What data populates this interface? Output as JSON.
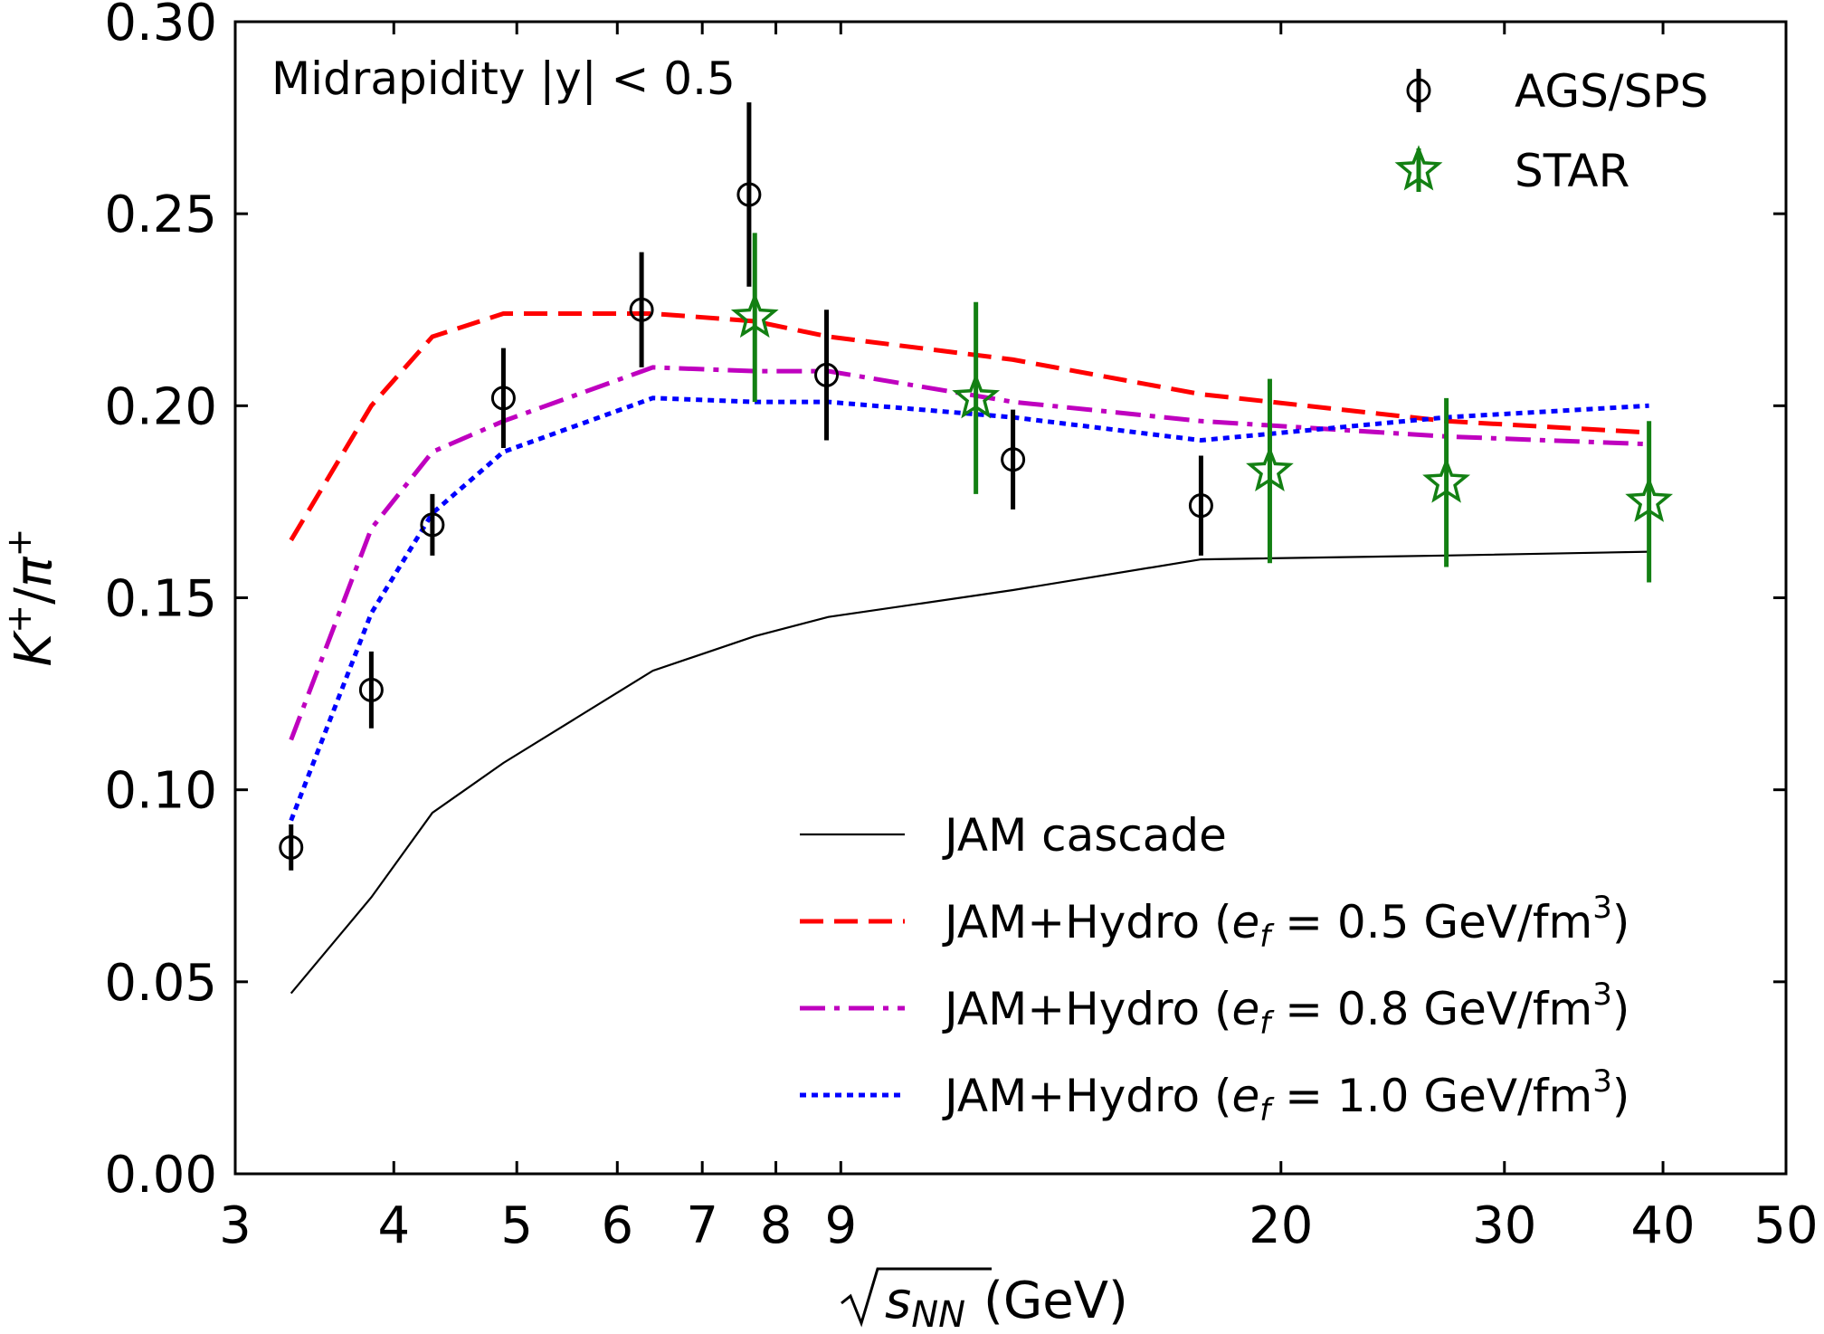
{
  "chart_data": {
    "type": "line",
    "annotation": "Midrapidity |y| < 0.5",
    "xlabel": "√sNN (GeV)",
    "ylabel": "K+/π+",
    "x_scale": "log",
    "xlim": [
      3,
      50
    ],
    "ylim": [
      0,
      0.3
    ],
    "x_ticks": [
      3,
      4,
      5,
      6,
      7,
      8,
      9,
      20,
      30,
      40,
      50
    ],
    "x_tick_labels": [
      "3",
      "4",
      "5",
      "6",
      "7",
      "8",
      "9",
      "20",
      "30",
      "40",
      "50"
    ],
    "y_ticks": [
      0,
      0.05,
      0.1,
      0.15,
      0.2,
      0.25,
      0.3
    ],
    "y_tick_labels": [
      "0.00",
      "0.05",
      "0.10",
      "0.15",
      "0.20",
      "0.25",
      "0.30"
    ],
    "grid": false,
    "legend_placement": [
      "top-right",
      "lower-right"
    ],
    "series": [
      {
        "name": "AGS/SPS",
        "kind": "errorbar",
        "marker": "circle-open",
        "color": "#000000",
        "points": [
          {
            "x": 3.32,
            "y": 0.085,
            "err": 0.006
          },
          {
            "x": 3.84,
            "y": 0.126,
            "err": 0.01
          },
          {
            "x": 4.29,
            "y": 0.169,
            "err": 0.008
          },
          {
            "x": 4.88,
            "y": 0.202,
            "err": 0.013
          },
          {
            "x": 6.27,
            "y": 0.225,
            "err": 0.015
          },
          {
            "x": 7.62,
            "y": 0.255,
            "err": 0.024
          },
          {
            "x": 8.77,
            "y": 0.208,
            "err": 0.017
          },
          {
            "x": 12.3,
            "y": 0.186,
            "err": 0.013
          },
          {
            "x": 17.3,
            "y": 0.174,
            "err": 0.013
          }
        ]
      },
      {
        "name": "STAR",
        "kind": "errorbar",
        "marker": "star-open",
        "color": "#138013",
        "points": [
          {
            "x": 7.7,
            "y": 0.223,
            "err": 0.022
          },
          {
            "x": 11.5,
            "y": 0.202,
            "err": 0.025
          },
          {
            "x": 19.6,
            "y": 0.183,
            "err": 0.024
          },
          {
            "x": 27.0,
            "y": 0.18,
            "err": 0.022
          },
          {
            "x": 39.0,
            "y": 0.175,
            "err": 0.021
          }
        ]
      },
      {
        "name": "JAM cascade",
        "kind": "line",
        "style": "solid",
        "color": "#000000",
        "points": [
          {
            "x": 3.32,
            "y": 0.047
          },
          {
            "x": 3.84,
            "y": 0.072
          },
          {
            "x": 4.29,
            "y": 0.094
          },
          {
            "x": 4.88,
            "y": 0.107
          },
          {
            "x": 6.4,
            "y": 0.131
          },
          {
            "x": 7.7,
            "y": 0.14
          },
          {
            "x": 8.8,
            "y": 0.145
          },
          {
            "x": 12.3,
            "y": 0.152
          },
          {
            "x": 17.3,
            "y": 0.16
          },
          {
            "x": 27.0,
            "y": 0.161
          },
          {
            "x": 39.0,
            "y": 0.162
          }
        ]
      },
      {
        "name": "JAM+Hydro (e_f = 0.5 GeV/fm³)",
        "kind": "line",
        "style": "dashed",
        "color": "#ff0000",
        "points": [
          {
            "x": 3.32,
            "y": 0.165
          },
          {
            "x": 3.84,
            "y": 0.2
          },
          {
            "x": 4.29,
            "y": 0.218
          },
          {
            "x": 4.88,
            "y": 0.224
          },
          {
            "x": 6.4,
            "y": 0.224
          },
          {
            "x": 7.7,
            "y": 0.222
          },
          {
            "x": 8.8,
            "y": 0.218
          },
          {
            "x": 12.3,
            "y": 0.212
          },
          {
            "x": 17.3,
            "y": 0.203
          },
          {
            "x": 27.0,
            "y": 0.196
          },
          {
            "x": 39.0,
            "y": 0.193
          }
        ]
      },
      {
        "name": "JAM+Hydro (e_f = 0.8 GeV/fm³)",
        "kind": "line",
        "style": "dashdot",
        "color": "#bf00bf",
        "points": [
          {
            "x": 3.32,
            "y": 0.113
          },
          {
            "x": 3.84,
            "y": 0.168
          },
          {
            "x": 4.29,
            "y": 0.188
          },
          {
            "x": 4.88,
            "y": 0.196
          },
          {
            "x": 6.4,
            "y": 0.21
          },
          {
            "x": 7.7,
            "y": 0.209
          },
          {
            "x": 8.8,
            "y": 0.209
          },
          {
            "x": 12.3,
            "y": 0.201
          },
          {
            "x": 17.3,
            "y": 0.196
          },
          {
            "x": 27.0,
            "y": 0.192
          },
          {
            "x": 39.0,
            "y": 0.19
          }
        ]
      },
      {
        "name": "JAM+Hydro (e_f = 1.0 GeV/fm³)",
        "kind": "line",
        "style": "dotted",
        "color": "#0000ff",
        "points": [
          {
            "x": 3.32,
            "y": 0.092
          },
          {
            "x": 3.84,
            "y": 0.146
          },
          {
            "x": 4.29,
            "y": 0.172
          },
          {
            "x": 4.88,
            "y": 0.188
          },
          {
            "x": 6.4,
            "y": 0.202
          },
          {
            "x": 7.7,
            "y": 0.201
          },
          {
            "x": 8.8,
            "y": 0.201
          },
          {
            "x": 12.3,
            "y": 0.197
          },
          {
            "x": 17.3,
            "y": 0.191
          },
          {
            "x": 27.0,
            "y": 0.197
          },
          {
            "x": 39.0,
            "y": 0.2
          }
        ]
      }
    ],
    "legend_top": [
      {
        "label": "AGS/SPS",
        "series": 0
      },
      {
        "label": "STAR",
        "series": 1
      }
    ],
    "legend_bottom": [
      {
        "prefix": "JAM cascade",
        "sub": "",
        "suffix": "",
        "series": 2
      },
      {
        "prefix": "JAM+Hydro (",
        "sub": "f",
        "suffix": " = 0.5 GeV/fm",
        "sup": "3",
        "close": ")",
        "series": 3
      },
      {
        "prefix": "JAM+Hydro (",
        "sub": "f",
        "suffix": " = 0.8 GeV/fm",
        "sup": "3",
        "close": ")",
        "series": 4
      },
      {
        "prefix": "JAM+Hydro (",
        "sub": "f",
        "suffix": " = 1.0 GeV/fm",
        "sup": "3",
        "close": ")",
        "series": 5
      }
    ]
  }
}
